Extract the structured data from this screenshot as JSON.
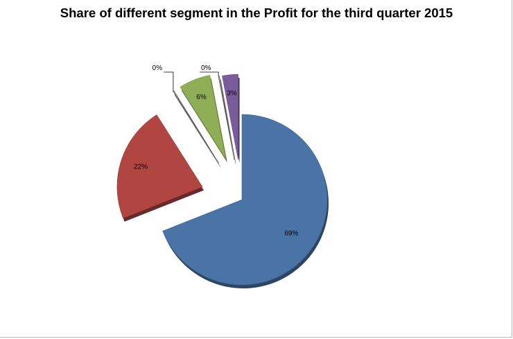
{
  "chart_data": {
    "type": "pie",
    "style": "3d-exploded",
    "title": "Share of different segment in the Profit for the third quarter 2015",
    "slices": [
      {
        "value": 69,
        "label": "69%",
        "color": "#4a73a6"
      },
      {
        "value": 22,
        "label": "22%",
        "color": "#b04542"
      },
      {
        "value": 0,
        "label": "0%",
        "color": "#d9d9d9"
      },
      {
        "value": 6,
        "label": "6%",
        "color": "#8fae55"
      },
      {
        "value": 0,
        "label": "0%",
        "color": "#d9d9d9"
      },
      {
        "value": 3,
        "label": "3%",
        "color": "#7a5c9c"
      }
    ],
    "legend": "none",
    "grid": false
  }
}
